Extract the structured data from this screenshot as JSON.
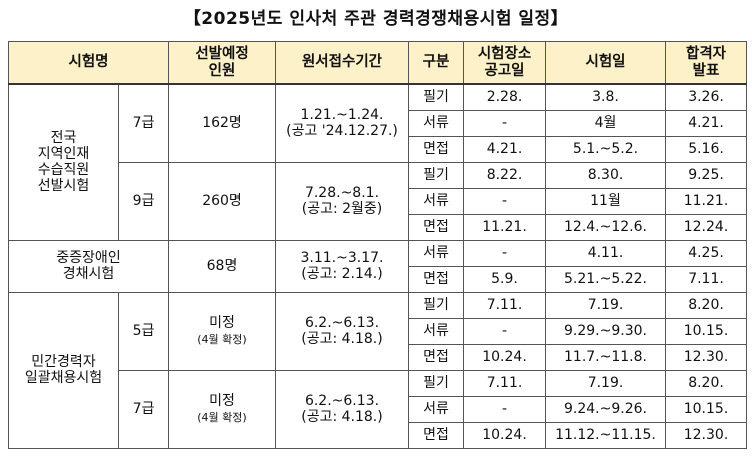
{
  "title": "【2025년도 인사처 주관 경력경쟁채용시험 일정】",
  "headers": {
    "exam_name": "시험명",
    "planned_line1": "선발예정",
    "planned_line2": "인원",
    "application": "원서접수기간",
    "category": "구분",
    "venue_line1": "시험장소",
    "venue_line2": "공고일",
    "exam_date": "시험일",
    "result_line1": "합격자",
    "result_line2": "발표"
  },
  "groups": [
    {
      "name_lines": [
        "전국",
        "지역인재",
        "수습직원",
        "선발시험"
      ],
      "subs": [
        {
          "grade": "7급",
          "count": "162명",
          "count_note": "",
          "app_line1": "1.21.~1.24.",
          "app_line2": "(공고 '24.12.27.)",
          "rows": [
            {
              "type": "필기",
              "venue": "2.28.",
              "exam": "3.8.",
              "result": "3.26."
            },
            {
              "type": "서류",
              "venue": "-",
              "exam": "4월",
              "result": "4.21."
            },
            {
              "type": "면접",
              "venue": "4.21.",
              "exam": "5.1.~5.2.",
              "result": "5.16."
            }
          ]
        },
        {
          "grade": "9급",
          "count": "260명",
          "count_note": "",
          "app_line1": "7.28.~8.1.",
          "app_line2": "(공고: 2월중)",
          "rows": [
            {
              "type": "필기",
              "venue": "8.22.",
              "exam": "8.30.",
              "result": "9.25."
            },
            {
              "type": "서류",
              "venue": "-",
              "exam": "11월",
              "result": "11.21."
            },
            {
              "type": "면접",
              "venue": "11.21.",
              "exam": "12.4.~12.6.",
              "result": "12.24."
            }
          ]
        }
      ]
    },
    {
      "name_lines": [
        "중증장애인",
        "경채시험"
      ],
      "subs": [
        {
          "grade": "",
          "count": "68명",
          "count_note": "",
          "app_line1": "3.11.~3.17.",
          "app_line2": "(공고: 2.14.)",
          "rows": [
            {
              "type": "서류",
              "venue": "-",
              "exam": "4.11.",
              "result": "4.25."
            },
            {
              "type": "면접",
              "venue": "5.9.",
              "exam": "5.21.~5.22.",
              "result": "7.11."
            }
          ]
        }
      ]
    },
    {
      "name_lines": [
        "민간경력자",
        "일괄채용시험"
      ],
      "subs": [
        {
          "grade": "5급",
          "count": "미정",
          "count_note": "(4월 확정)",
          "app_line1": "6.2.~6.13.",
          "app_line2": "(공고: 4.18.)",
          "rows": [
            {
              "type": "필기",
              "venue": "7.11.",
              "exam": "7.19.",
              "result": "8.20."
            },
            {
              "type": "서류",
              "venue": "-",
              "exam": "9.29.~9.30.",
              "result": "10.15."
            },
            {
              "type": "면접",
              "venue": "10.24.",
              "exam": "11.7.~11.8.",
              "result": "12.30."
            }
          ]
        },
        {
          "grade": "7급",
          "count": "미정",
          "count_note": "(4월 확정)",
          "app_line1": "6.2.~6.13.",
          "app_line2": "(공고: 4.18.)",
          "rows": [
            {
              "type": "필기",
              "venue": "7.11.",
              "exam": "7.19.",
              "result": "8.20."
            },
            {
              "type": "서류",
              "venue": "-",
              "exam": "9.24.~9.26.",
              "result": "10.15."
            },
            {
              "type": "면접",
              "venue": "10.24.",
              "exam": "11.12.~11.15.",
              "result": "12.30."
            }
          ]
        }
      ]
    }
  ]
}
